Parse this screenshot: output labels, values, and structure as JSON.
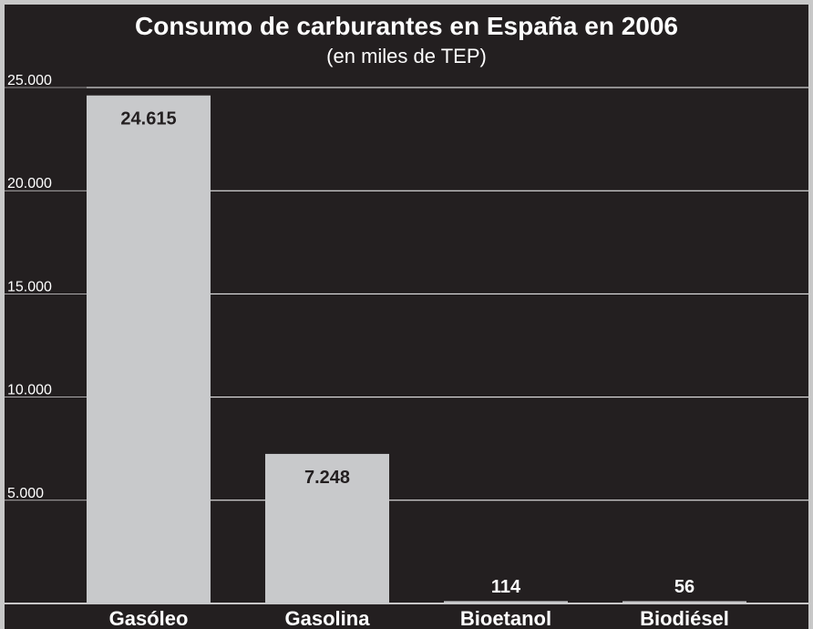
{
  "chart_data": {
    "type": "bar",
    "title": "Consumo de carburantes en España en 2006",
    "subtitle": "(en miles de TEP)",
    "categories": [
      "Gasóleo",
      "Gasolina",
      "Bioetanol",
      "Biodiésel"
    ],
    "values": [
      24615,
      7248,
      114,
      56
    ],
    "value_labels": [
      "24.615",
      "7.248",
      "114",
      "56"
    ],
    "yticks": [
      0,
      5000,
      10000,
      15000,
      20000,
      25000
    ],
    "ytick_labels": [
      "",
      "5.000",
      "10.000",
      "15.000",
      "20.000",
      "25.000"
    ],
    "ylim": [
      0,
      25000
    ],
    "xlabel": "",
    "ylabel": "",
    "grid": true,
    "legend": "none"
  },
  "colors": {
    "background": "#231f20",
    "border": "#c8c8c8",
    "bar": "#c8c9cb",
    "grid": "#ffffff",
    "text": "#ffffff",
    "value_text": "#231f20"
  }
}
